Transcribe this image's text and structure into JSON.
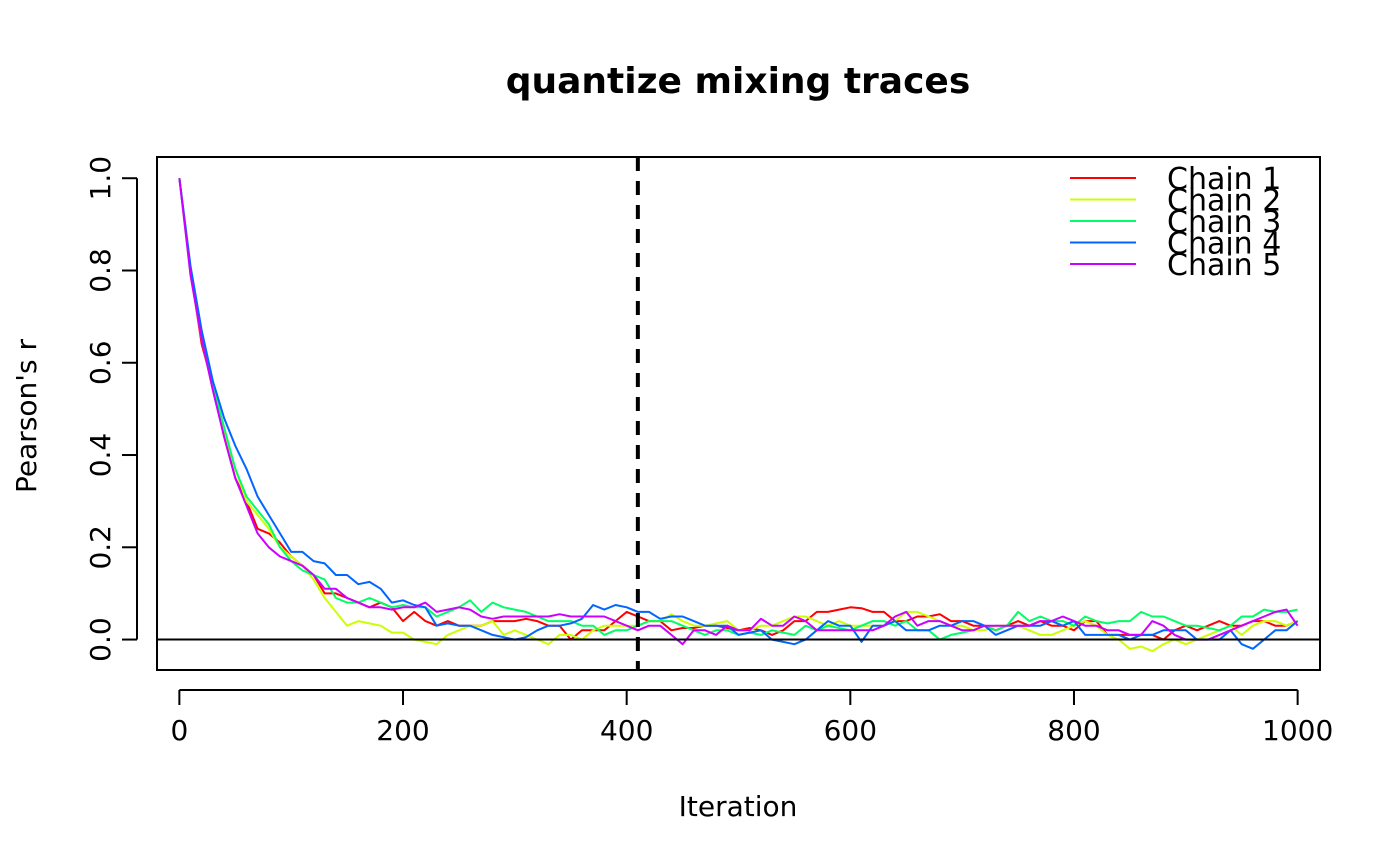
{
  "chart_data": {
    "type": "line",
    "title": "quantize mixing traces",
    "xlabel": "Iteration",
    "ylabel": "Pearson's r",
    "xlim": [
      -20,
      1020
    ],
    "ylim": [
      -0.066,
      1.046
    ],
    "x_ticks": [
      0,
      200,
      400,
      600,
      800,
      1000
    ],
    "y_ticks": [
      0.0,
      0.2,
      0.4,
      0.6,
      0.8,
      1.0
    ],
    "x_tick_labels": [
      "0",
      "200",
      "400",
      "600",
      "800",
      "1000"
    ],
    "y_tick_labels": [
      "0.0",
      "0.2",
      "0.4",
      "0.6",
      "0.8",
      "1.0"
    ],
    "grid": false,
    "legend_position": "top-right",
    "reference_lines": {
      "horizontal_solid_y": 0.0,
      "vertical_dashed_x": 410
    },
    "x": [
      0,
      10,
      20,
      30,
      40,
      50,
      60,
      70,
      80,
      90,
      100,
      110,
      120,
      130,
      140,
      150,
      160,
      170,
      180,
      190,
      200,
      210,
      220,
      230,
      240,
      250,
      260,
      270,
      280,
      290,
      300,
      310,
      320,
      330,
      340,
      350,
      360,
      370,
      380,
      390,
      400,
      410,
      420,
      430,
      440,
      450,
      460,
      470,
      480,
      490,
      500,
      510,
      520,
      530,
      540,
      550,
      560,
      570,
      580,
      590,
      600,
      610,
      620,
      630,
      640,
      650,
      660,
      670,
      680,
      690,
      700,
      710,
      720,
      730,
      740,
      750,
      760,
      770,
      780,
      790,
      800,
      810,
      820,
      830,
      840,
      850,
      860,
      870,
      880,
      890,
      900,
      910,
      920,
      930,
      940,
      950,
      960,
      970,
      980,
      990,
      1000
    ],
    "series": [
      {
        "name": "Chain 1",
        "color": "#ff0000",
        "values": [
          1.0,
          0.8,
          0.64,
          0.55,
          0.44,
          0.35,
          0.3,
          0.24,
          0.23,
          0.21,
          0.18,
          0.16,
          0.14,
          0.1,
          0.1,
          0.09,
          0.08,
          0.07,
          0.08,
          0.07,
          0.04,
          0.06,
          0.04,
          0.03,
          0.04,
          0.03,
          0.03,
          0.03,
          0.04,
          0.04,
          0.04,
          0.045,
          0.04,
          0.03,
          0.03,
          0.0,
          0.02,
          0.02,
          0.02,
          0.04,
          0.06,
          0.05,
          0.04,
          0.04,
          0.02,
          0.025,
          0.025,
          0.03,
          0.03,
          0.025,
          0.02,
          0.025,
          0.02,
          0.01,
          0.02,
          0.04,
          0.04,
          0.06,
          0.06,
          0.065,
          0.07,
          0.068,
          0.06,
          0.06,
          0.04,
          0.04,
          0.05,
          0.05,
          0.055,
          0.04,
          0.04,
          0.03,
          0.03,
          0.02,
          0.03,
          0.04,
          0.03,
          0.04,
          0.03,
          0.03,
          0.02,
          0.04,
          0.04,
          0.01,
          0.01,
          0.01,
          0.01,
          0.01,
          0.0,
          0.02,
          0.03,
          0.02,
          0.03,
          0.04,
          0.03,
          0.03,
          0.04,
          0.04,
          0.03,
          0.03,
          0.04
        ]
      },
      {
        "name": "Chain 2",
        "color": "#ccff00",
        "values": [
          1.0,
          0.79,
          0.65,
          0.54,
          0.45,
          0.37,
          0.3,
          0.27,
          0.24,
          0.2,
          0.18,
          0.16,
          0.13,
          0.09,
          0.06,
          0.03,
          0.04,
          0.035,
          0.03,
          0.015,
          0.015,
          0.0,
          -0.005,
          -0.01,
          0.01,
          0.02,
          0.03,
          0.03,
          0.04,
          0.01,
          0.02,
          0.01,
          0.0,
          -0.01,
          0.01,
          0.01,
          0.0,
          0.02,
          0.03,
          0.03,
          0.03,
          0.03,
          0.04,
          0.04,
          0.055,
          0.04,
          0.03,
          0.03,
          0.035,
          0.04,
          0.02,
          0.02,
          0.03,
          0.03,
          0.04,
          0.05,
          0.05,
          0.04,
          0.03,
          0.04,
          0.03,
          0.03,
          0.03,
          0.03,
          0.04,
          0.06,
          0.06,
          0.05,
          0.04,
          0.03,
          0.03,
          0.02,
          0.02,
          0.03,
          0.03,
          0.03,
          0.02,
          0.01,
          0.01,
          0.02,
          0.03,
          0.04,
          0.03,
          0.01,
          0.0,
          -0.02,
          -0.015,
          -0.025,
          -0.01,
          0.0,
          -0.01,
          0.0,
          0.01,
          0.02,
          0.03,
          0.01,
          0.03,
          0.04,
          0.04,
          0.03,
          0.04
        ]
      },
      {
        "name": "Chain 3",
        "color": "#00ff66",
        "values": [
          1.0,
          0.8,
          0.66,
          0.55,
          0.46,
          0.37,
          0.31,
          0.28,
          0.25,
          0.2,
          0.17,
          0.15,
          0.14,
          0.13,
          0.09,
          0.08,
          0.08,
          0.09,
          0.08,
          0.07,
          0.075,
          0.07,
          0.07,
          0.05,
          0.06,
          0.07,
          0.085,
          0.06,
          0.08,
          0.07,
          0.065,
          0.06,
          0.05,
          0.04,
          0.04,
          0.04,
          0.03,
          0.03,
          0.01,
          0.02,
          0.02,
          0.03,
          0.04,
          0.04,
          0.04,
          0.03,
          0.02,
          0.01,
          0.02,
          0.02,
          0.01,
          0.015,
          0.01,
          0.02,
          0.015,
          0.01,
          0.03,
          0.02,
          0.03,
          0.025,
          0.02,
          0.03,
          0.04,
          0.04,
          0.03,
          0.04,
          0.02,
          0.02,
          0.0,
          0.01,
          0.015,
          0.02,
          0.03,
          0.02,
          0.03,
          0.06,
          0.04,
          0.05,
          0.04,
          0.04,
          0.03,
          0.05,
          0.04,
          0.035,
          0.04,
          0.04,
          0.06,
          0.05,
          0.05,
          0.04,
          0.03,
          0.03,
          0.025,
          0.02,
          0.03,
          0.05,
          0.05,
          0.065,
          0.06,
          0.06,
          0.065
        ]
      },
      {
        "name": "Chain 4",
        "color": "#0066ff",
        "values": [
          1.0,
          0.81,
          0.67,
          0.56,
          0.48,
          0.42,
          0.37,
          0.31,
          0.27,
          0.23,
          0.19,
          0.19,
          0.17,
          0.165,
          0.14,
          0.14,
          0.12,
          0.125,
          0.11,
          0.08,
          0.085,
          0.075,
          0.07,
          0.03,
          0.035,
          0.03,
          0.03,
          0.02,
          0.01,
          0.005,
          0.0,
          0.005,
          0.02,
          0.03,
          0.03,
          0.035,
          0.045,
          0.075,
          0.065,
          0.075,
          0.07,
          0.06,
          0.06,
          0.045,
          0.05,
          0.05,
          0.04,
          0.03,
          0.03,
          0.03,
          0.01,
          0.015,
          0.02,
          0.0,
          -0.005,
          -0.01,
          0.0,
          0.02,
          0.04,
          0.03,
          0.03,
          -0.005,
          0.03,
          0.03,
          0.04,
          0.02,
          0.02,
          0.02,
          0.03,
          0.03,
          0.04,
          0.04,
          0.03,
          0.01,
          0.02,
          0.03,
          0.03,
          0.03,
          0.04,
          0.03,
          0.04,
          0.01,
          0.01,
          0.01,
          0.01,
          0.0,
          0.01,
          0.01,
          0.02,
          0.02,
          0.02,
          0.0,
          0.0,
          0.0,
          0.02,
          -0.01,
          -0.02,
          0.0,
          0.02,
          0.02,
          0.04
        ]
      },
      {
        "name": "Chain 5",
        "color": "#cc00ff",
        "values": [
          1.0,
          0.79,
          0.65,
          0.54,
          0.44,
          0.35,
          0.29,
          0.23,
          0.2,
          0.18,
          0.17,
          0.16,
          0.14,
          0.11,
          0.11,
          0.09,
          0.08,
          0.07,
          0.07,
          0.065,
          0.07,
          0.07,
          0.08,
          0.06,
          0.065,
          0.07,
          0.065,
          0.05,
          0.045,
          0.05,
          0.05,
          0.05,
          0.05,
          0.05,
          0.055,
          0.05,
          0.05,
          0.05,
          0.05,
          0.04,
          0.03,
          0.02,
          0.03,
          0.03,
          0.01,
          -0.01,
          0.02,
          0.02,
          0.01,
          0.03,
          0.02,
          0.02,
          0.045,
          0.03,
          0.03,
          0.05,
          0.04,
          0.02,
          0.02,
          0.02,
          0.02,
          0.02,
          0.02,
          0.03,
          0.05,
          0.06,
          0.03,
          0.04,
          0.04,
          0.03,
          0.02,
          0.02,
          0.03,
          0.03,
          0.03,
          0.03,
          0.03,
          0.04,
          0.04,
          0.05,
          0.04,
          0.03,
          0.03,
          0.02,
          0.02,
          0.01,
          0.01,
          0.04,
          0.03,
          0.01,
          0.0,
          0.0,
          0.0,
          0.01,
          0.02,
          0.03,
          0.04,
          0.05,
          0.06,
          0.065,
          0.03
        ]
      }
    ]
  }
}
